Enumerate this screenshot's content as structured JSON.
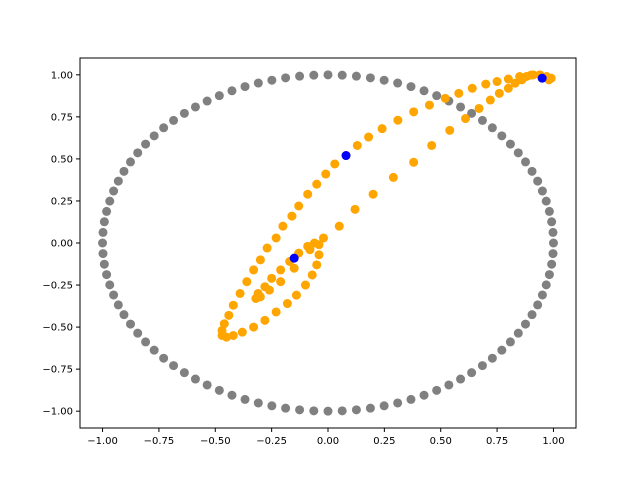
{
  "chart_data": {
    "type": "scatter",
    "title": "",
    "xlabel": "",
    "ylabel": "",
    "xlim": [
      -1.1,
      1.1
    ],
    "ylim": [
      -1.1,
      1.1
    ],
    "xticks": [
      -1.0,
      -0.75,
      -0.5,
      -0.25,
      0.0,
      0.25,
      0.5,
      0.75,
      1.0
    ],
    "yticks": [
      -1.0,
      -0.75,
      -0.5,
      -0.25,
      0.0,
      0.25,
      0.5,
      0.75,
      1.0
    ],
    "xtick_labels": [
      "−1.00",
      "−0.75",
      "−0.50",
      "−0.25",
      "0.00",
      "0.25",
      "0.50",
      "0.75",
      "1.00"
    ],
    "ytick_labels": [
      "−1.00",
      "−0.75",
      "−0.50",
      "−0.25",
      "0.00",
      "0.25",
      "0.50",
      "0.75",
      "1.00"
    ],
    "grid": false,
    "series": [
      {
        "color": "#808080",
        "points": [
          [
            1.0,
            0.0
          ],
          [
            0.998,
            0.063
          ],
          [
            0.992,
            0.126
          ],
          [
            0.982,
            0.188
          ],
          [
            0.968,
            0.249
          ],
          [
            0.951,
            0.309
          ],
          [
            0.93,
            0.368
          ],
          [
            0.905,
            0.426
          ],
          [
            0.876,
            0.482
          ],
          [
            0.844,
            0.536
          ],
          [
            0.809,
            0.588
          ],
          [
            0.771,
            0.637
          ],
          [
            0.729,
            0.685
          ],
          [
            0.685,
            0.729
          ],
          [
            0.637,
            0.771
          ],
          [
            0.588,
            0.809
          ],
          [
            0.536,
            0.844
          ],
          [
            0.482,
            0.876
          ],
          [
            0.426,
            0.905
          ],
          [
            0.368,
            0.93
          ],
          [
            0.309,
            0.951
          ],
          [
            0.249,
            0.968
          ],
          [
            0.188,
            0.982
          ],
          [
            0.126,
            0.992
          ],
          [
            0.063,
            0.998
          ],
          [
            0.0,
            1.0
          ],
          [
            -0.063,
            0.998
          ],
          [
            -0.126,
            0.992
          ],
          [
            -0.188,
            0.982
          ],
          [
            -0.249,
            0.968
          ],
          [
            -0.309,
            0.951
          ],
          [
            -0.368,
            0.93
          ],
          [
            -0.426,
            0.905
          ],
          [
            -0.482,
            0.876
          ],
          [
            -0.536,
            0.844
          ],
          [
            -0.588,
            0.809
          ],
          [
            -0.637,
            0.771
          ],
          [
            -0.685,
            0.729
          ],
          [
            -0.729,
            0.685
          ],
          [
            -0.771,
            0.637
          ],
          [
            -0.809,
            0.588
          ],
          [
            -0.844,
            0.536
          ],
          [
            -0.876,
            0.482
          ],
          [
            -0.905,
            0.426
          ],
          [
            -0.93,
            0.368
          ],
          [
            -0.951,
            0.309
          ],
          [
            -0.968,
            0.249
          ],
          [
            -0.982,
            0.188
          ],
          [
            -0.992,
            0.126
          ],
          [
            -0.998,
            0.063
          ],
          [
            -1.0,
            0.0
          ],
          [
            -0.998,
            -0.063
          ],
          [
            -0.992,
            -0.126
          ],
          [
            -0.982,
            -0.188
          ],
          [
            -0.968,
            -0.249
          ],
          [
            -0.951,
            -0.309
          ],
          [
            -0.93,
            -0.368
          ],
          [
            -0.905,
            -0.426
          ],
          [
            -0.876,
            -0.482
          ],
          [
            -0.844,
            -0.536
          ],
          [
            -0.809,
            -0.588
          ],
          [
            -0.771,
            -0.637
          ],
          [
            -0.729,
            -0.685
          ],
          [
            -0.685,
            -0.729
          ],
          [
            -0.637,
            -0.771
          ],
          [
            -0.588,
            -0.809
          ],
          [
            -0.536,
            -0.844
          ],
          [
            -0.482,
            -0.876
          ],
          [
            -0.426,
            -0.905
          ],
          [
            -0.368,
            -0.93
          ],
          [
            -0.309,
            -0.951
          ],
          [
            -0.249,
            -0.968
          ],
          [
            -0.188,
            -0.982
          ],
          [
            -0.126,
            -0.992
          ],
          [
            -0.063,
            -0.998
          ],
          [
            0.0,
            -1.0
          ],
          [
            0.063,
            -0.998
          ],
          [
            0.126,
            -0.992
          ],
          [
            0.188,
            -0.982
          ],
          [
            0.249,
            -0.968
          ],
          [
            0.309,
            -0.951
          ],
          [
            0.368,
            -0.93
          ],
          [
            0.426,
            -0.905
          ],
          [
            0.482,
            -0.876
          ],
          [
            0.536,
            -0.844
          ],
          [
            0.588,
            -0.809
          ],
          [
            0.637,
            -0.771
          ],
          [
            0.685,
            -0.729
          ],
          [
            0.729,
            -0.685
          ],
          [
            0.771,
            -0.637
          ],
          [
            0.809,
            -0.588
          ],
          [
            0.844,
            -0.536
          ],
          [
            0.876,
            -0.482
          ],
          [
            0.905,
            -0.426
          ],
          [
            0.93,
            -0.368
          ],
          [
            0.951,
            -0.309
          ],
          [
            0.968,
            -0.249
          ],
          [
            0.982,
            -0.188
          ],
          [
            0.992,
            -0.126
          ],
          [
            0.998,
            -0.063
          ]
        ]
      },
      {
        "color": "#FFA500",
        "points": [
          [
            0.95,
            0.98
          ],
          [
            0.9,
            0.998
          ],
          [
            0.85,
            0.99
          ],
          [
            0.8,
            0.975
          ],
          [
            0.75,
            0.96
          ],
          [
            0.7,
            0.945
          ],
          [
            0.64,
            0.92
          ],
          [
            0.58,
            0.89
          ],
          [
            0.52,
            0.86
          ],
          [
            0.45,
            0.82
          ],
          [
            0.38,
            0.78
          ],
          [
            0.31,
            0.73
          ],
          [
            0.24,
            0.68
          ],
          [
            0.18,
            0.63
          ],
          [
            0.13,
            0.58
          ],
          [
            0.08,
            0.52
          ],
          [
            0.03,
            0.47
          ],
          [
            -0.01,
            0.41
          ],
          [
            -0.05,
            0.35
          ],
          [
            -0.09,
            0.29
          ],
          [
            -0.13,
            0.22
          ],
          [
            -0.16,
            0.16
          ],
          [
            -0.2,
            0.1
          ],
          [
            -0.23,
            0.03
          ],
          [
            -0.27,
            -0.03
          ],
          [
            -0.3,
            -0.1
          ],
          [
            -0.33,
            -0.16
          ],
          [
            -0.36,
            -0.23
          ],
          [
            -0.39,
            -0.3
          ],
          [
            -0.42,
            -0.37
          ],
          [
            -0.44,
            -0.43
          ],
          [
            -0.46,
            -0.48
          ],
          [
            -0.47,
            -0.52
          ],
          [
            -0.47,
            -0.55
          ],
          [
            -0.45,
            -0.56
          ],
          [
            -0.42,
            -0.55
          ],
          [
            -0.38,
            -0.53
          ],
          [
            -0.33,
            -0.5
          ],
          [
            -0.28,
            -0.46
          ],
          [
            -0.23,
            -0.41
          ],
          [
            -0.18,
            -0.36
          ],
          [
            -0.14,
            -0.31
          ],
          [
            -0.1,
            -0.25
          ],
          [
            -0.07,
            -0.19
          ],
          [
            -0.05,
            -0.13
          ],
          [
            -0.04,
            -0.07
          ],
          [
            -0.04,
            -0.01
          ],
          [
            -0.06,
            0.0
          ],
          [
            -0.09,
            -0.02
          ],
          [
            -0.13,
            -0.06
          ],
          [
            -0.17,
            -0.11
          ],
          [
            -0.21,
            -0.16
          ],
          [
            -0.25,
            -0.21
          ],
          [
            -0.28,
            -0.26
          ],
          [
            -0.31,
            -0.3
          ],
          [
            -0.32,
            -0.33
          ],
          [
            -0.3,
            -0.32
          ],
          [
            -0.26,
            -0.28
          ],
          [
            -0.21,
            -0.23
          ],
          [
            -0.15,
            -0.15
          ],
          [
            -0.08,
            -0.04
          ],
          [
            -0.02,
            0.03
          ],
          [
            0.05,
            0.1
          ],
          [
            0.12,
            0.2
          ],
          [
            0.2,
            0.29
          ],
          [
            0.29,
            0.39
          ],
          [
            0.38,
            0.48
          ],
          [
            0.46,
            0.58
          ],
          [
            0.54,
            0.67
          ],
          [
            0.61,
            0.74
          ],
          [
            0.67,
            0.8
          ],
          [
            0.72,
            0.85
          ],
          [
            0.76,
            0.89
          ],
          [
            0.8,
            0.92
          ],
          [
            0.83,
            0.95
          ],
          [
            0.86,
            0.97
          ],
          [
            0.88,
            0.99
          ],
          [
            0.91,
            1.0
          ],
          [
            0.94,
            1.0
          ],
          [
            0.97,
            0.99
          ],
          [
            0.99,
            0.98
          ],
          [
            0.98,
            0.97
          ]
        ]
      },
      {
        "color": "#0000FF",
        "points": [
          [
            0.95,
            0.98
          ],
          [
            0.08,
            0.52
          ],
          [
            -0.15,
            -0.09
          ]
        ]
      }
    ]
  }
}
